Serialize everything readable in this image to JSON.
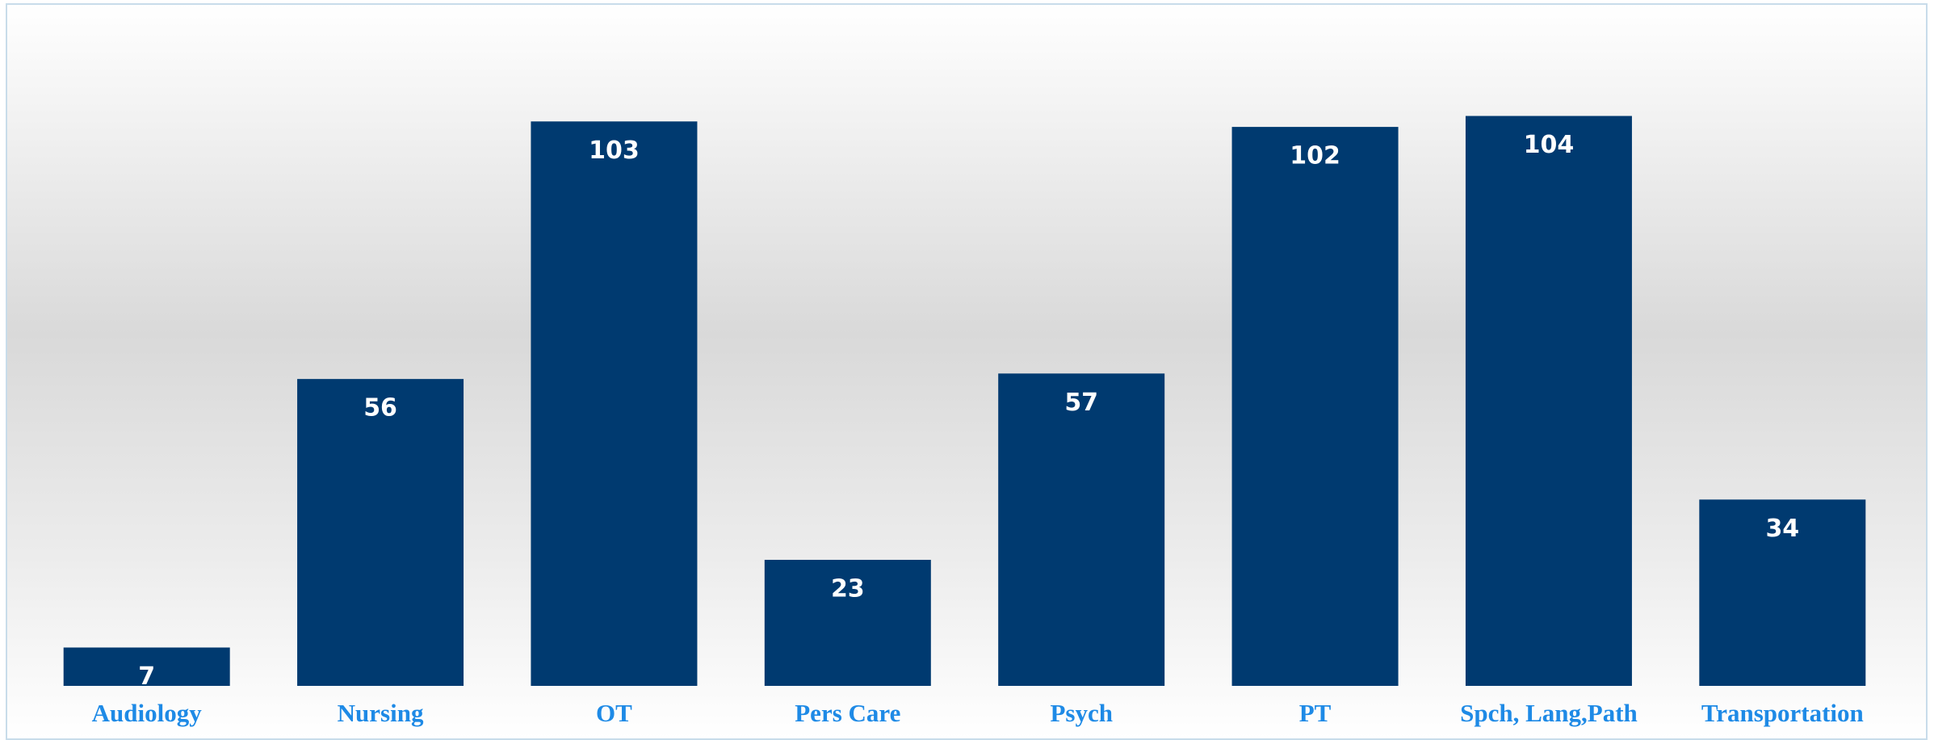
{
  "chart_data": {
    "type": "bar",
    "categories": [
      "Audiology",
      "Nursing",
      "OT",
      "Pers Care",
      "Psych",
      "PT",
      "Spch, Lang,Path",
      "Transportation"
    ],
    "values": [
      7,
      56,
      103,
      23,
      57,
      102,
      104,
      34
    ],
    "color": "#003a70",
    "label_color": "#1e8ae6",
    "ylim": [
      0,
      120
    ]
  }
}
